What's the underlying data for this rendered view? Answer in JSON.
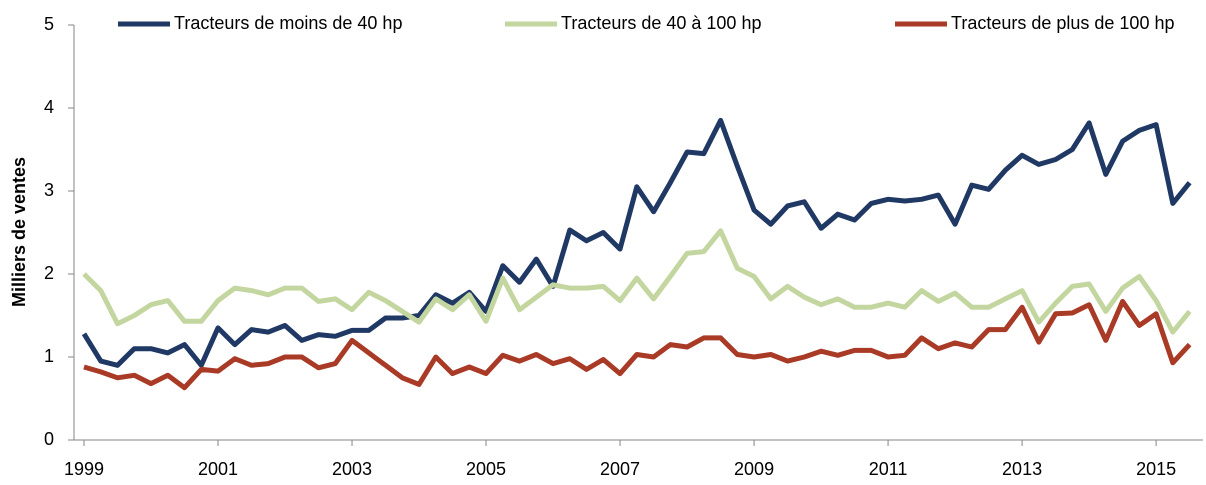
{
  "chart_data": {
    "type": "line",
    "y_label": "Milliers de ventes",
    "x": [
      1999,
      1999.25,
      1999.5,
      1999.75,
      2000,
      2000.25,
      2000.5,
      2000.75,
      2001,
      2001.25,
      2001.5,
      2001.75,
      2002,
      2002.25,
      2002.5,
      2002.75,
      2003,
      2003.25,
      2003.5,
      2003.75,
      2004,
      2004.25,
      2004.5,
      2004.75,
      2005,
      2005.25,
      2005.5,
      2005.75,
      2006,
      2006.25,
      2006.5,
      2006.75,
      2007,
      2007.25,
      2007.5,
      2007.75,
      2008,
      2008.25,
      2008.5,
      2008.75,
      2009,
      2009.25,
      2009.5,
      2009.75,
      2010,
      2010.25,
      2010.5,
      2010.75,
      2011,
      2011.25,
      2011.5,
      2011.75,
      2012,
      2012.25,
      2012.5,
      2012.75,
      2013,
      2013.25,
      2013.5,
      2013.75,
      2014,
      2014.25,
      2014.5,
      2014.75,
      2015,
      2015.25,
      2015.5
    ],
    "series": [
      {
        "name": "Tracteurs de moins de 40 hp",
        "color": "#1f3864",
        "values": [
          1.28,
          0.95,
          0.9,
          1.1,
          1.1,
          1.05,
          1.15,
          0.9,
          1.35,
          1.15,
          1.33,
          1.3,
          1.38,
          1.2,
          1.27,
          1.25,
          1.32,
          1.32,
          1.47,
          1.47,
          1.5,
          1.75,
          1.65,
          1.78,
          1.55,
          2.1,
          1.9,
          2.18,
          1.85,
          2.53,
          2.4,
          2.5,
          2.3,
          3.05,
          2.75,
          3.1,
          3.47,
          3.45,
          3.85,
          3.3,
          2.77,
          2.6,
          2.82,
          2.87,
          2.55,
          2.72,
          2.65,
          2.85,
          2.9,
          2.88,
          2.9,
          2.95,
          2.6,
          3.07,
          3.02,
          3.25,
          3.43,
          3.32,
          3.38,
          3.5,
          3.82,
          3.2,
          3.6,
          3.73,
          3.8,
          2.85,
          3.1
        ]
      },
      {
        "name": "Tracteurs de 40 à 100 hp",
        "color": "#c4d6a0",
        "values": [
          2.0,
          1.8,
          1.4,
          1.5,
          1.63,
          1.68,
          1.43,
          1.43,
          1.68,
          1.83,
          1.8,
          1.75,
          1.83,
          1.83,
          1.67,
          1.7,
          1.57,
          1.78,
          1.68,
          1.55,
          1.42,
          1.7,
          1.57,
          1.75,
          1.43,
          1.95,
          1.57,
          1.72,
          1.87,
          1.83,
          1.83,
          1.85,
          1.68,
          1.95,
          1.7,
          1.97,
          2.25,
          2.27,
          2.52,
          2.07,
          1.97,
          1.7,
          1.85,
          1.72,
          1.63,
          1.7,
          1.6,
          1.6,
          1.65,
          1.6,
          1.8,
          1.67,
          1.77,
          1.6,
          1.6,
          1.7,
          1.8,
          1.42,
          1.65,
          1.85,
          1.88,
          1.55,
          1.83,
          1.97,
          1.68,
          1.3,
          1.55
        ]
      },
      {
        "name": "Tracteurs de plus de 100 hp",
        "color": "#a93a26",
        "values": [
          0.88,
          0.82,
          0.75,
          0.78,
          0.68,
          0.78,
          0.63,
          0.85,
          0.83,
          0.98,
          0.9,
          0.92,
          1.0,
          1.0,
          0.87,
          0.92,
          1.2,
          1.05,
          0.9,
          0.75,
          0.67,
          1.0,
          0.8,
          0.88,
          0.8,
          1.02,
          0.95,
          1.03,
          0.92,
          0.98,
          0.85,
          0.97,
          0.8,
          1.03,
          1.0,
          1.15,
          1.12,
          1.23,
          1.23,
          1.03,
          1.0,
          1.03,
          0.95,
          1.0,
          1.07,
          1.02,
          1.08,
          1.08,
          1.0,
          1.02,
          1.23,
          1.1,
          1.17,
          1.12,
          1.33,
          1.33,
          1.6,
          1.18,
          1.52,
          1.53,
          1.63,
          1.2,
          1.67,
          1.38,
          1.52,
          0.93,
          1.15
        ]
      }
    ],
    "xlim": [
      1999,
      2015.7
    ],
    "xticks": [
      1999,
      2001,
      2003,
      2005,
      2007,
      2009,
      2011,
      2013,
      2015
    ],
    "ylim": [
      0,
      5
    ],
    "yticks": [
      0,
      1,
      2,
      3,
      4,
      5
    ],
    "grid": false,
    "legend": "top"
  }
}
